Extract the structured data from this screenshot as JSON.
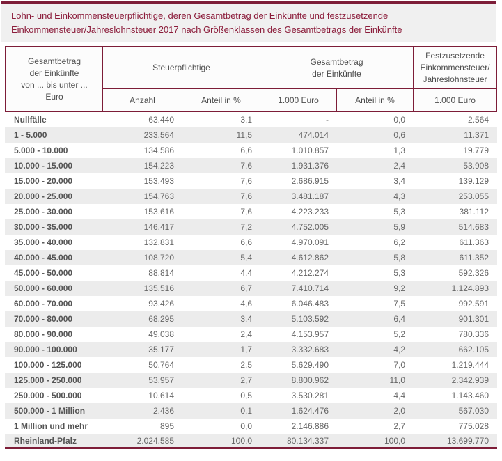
{
  "accent_color": "#7d1d38",
  "title": {
    "text": "Lohn- und Einkommensteuerpflichtige, deren Gesamtbetrag der Einkünfte und festzusetzende Einkommensteuer/Jahreslohnsteuer 2017 nach Größenklassen des Gesamtbetrags der Einkünfte"
  },
  "table": {
    "header": {
      "col_label": "Gesamtbetrag\nder Einkünfte\nvon ... bis unter ...\nEuro",
      "group_steuerpflichtige": "Steuerpflichtige",
      "group_gesamtbetrag": "Gesamtbetrag\nder Einkünfte",
      "col_festzusetzende": "Festzusetzende\nEinkommensteuer/\nJahreslohnsteuer",
      "subs": [
        "Anzahl",
        "Anteil in %",
        "1.000 Euro",
        "Anteil in %",
        "1.000 Euro"
      ]
    },
    "rows": [
      [
        "Nullfälle",
        "63.440",
        "3,1",
        "-",
        "0,0",
        "2.564"
      ],
      [
        "1 - 5.000",
        "233.564",
        "11,5",
        "474.014",
        "0,6",
        "11.371"
      ],
      [
        "5.000 - 10.000",
        "134.586",
        "6,6",
        "1.010.857",
        "1,3",
        "19.779"
      ],
      [
        "10.000 - 15.000",
        "154.223",
        "7,6",
        "1.931.376",
        "2,4",
        "53.908"
      ],
      [
        "15.000 - 20.000",
        "153.493",
        "7,6",
        "2.686.915",
        "3,4",
        "139.129"
      ],
      [
        "20.000 - 25.000",
        "154.763",
        "7,6",
        "3.481.187",
        "4,3",
        "253.055"
      ],
      [
        "25.000 - 30.000",
        "153.616",
        "7,6",
        "4.223.233",
        "5,3",
        "381.112"
      ],
      [
        "30.000 - 35.000",
        "146.417",
        "7,2",
        "4.752.005",
        "5,9",
        "514.683"
      ],
      [
        "35.000 - 40.000",
        "132.831",
        "6,6",
        "4.970.091",
        "6,2",
        "611.363"
      ],
      [
        "40.000 - 45.000",
        "108.720",
        "5,4",
        "4.612.862",
        "5,8",
        "611.352"
      ],
      [
        "45.000 - 50.000",
        "88.814",
        "4,4",
        "4.212.274",
        "5,3",
        "592.326"
      ],
      [
        "50.000 - 60.000",
        "135.516",
        "6,7",
        "7.410.714",
        "9,2",
        "1.124.893"
      ],
      [
        "60.000 - 70.000",
        "93.426",
        "4,6",
        "6.046.483",
        "7,5",
        "992.591"
      ],
      [
        "70.000 - 80.000",
        "68.295",
        "3,4",
        "5.103.592",
        "6,4",
        "901.301"
      ],
      [
        "80.000 - 90.000",
        "49.038",
        "2,4",
        "4.153.957",
        "5,2",
        "780.336"
      ],
      [
        "90.000 - 100.000",
        "35.177",
        "1,7",
        "3.332.683",
        "4,2",
        "662.105"
      ],
      [
        "100.000 - 125.000",
        "50.764",
        "2,5",
        "5.629.490",
        "7,0",
        "1.219.444"
      ],
      [
        "125.000 - 250.000",
        "53.957",
        "2,7",
        "8.800.962",
        "11,0",
        "2.342.939"
      ],
      [
        "250.000 - 500.000",
        "10.614",
        "0,5",
        "3.530.281",
        "4,4",
        "1.143.460"
      ],
      [
        "500.000 - 1 Million",
        "2.436",
        "0,1",
        "1.624.476",
        "2,0",
        "567.030"
      ],
      [
        "1 Million und mehr",
        "895",
        "0,0",
        "2.146.886",
        "2,7",
        "775.028"
      ]
    ],
    "total_row": [
      "Rheinland-Pfalz",
      "2.024.585",
      "100,0",
      "80.134.337",
      "100,0",
      "13.699.770"
    ]
  }
}
